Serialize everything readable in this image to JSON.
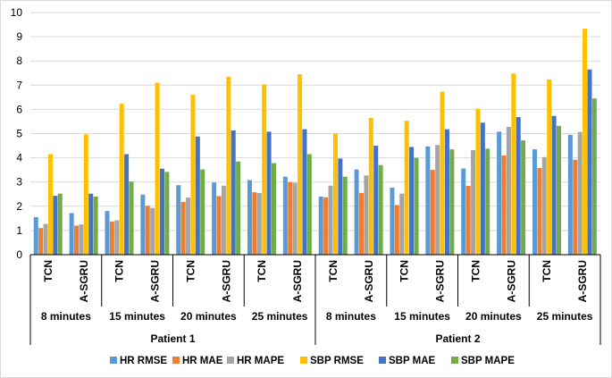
{
  "chart_data": {
    "type": "bar",
    "title": "",
    "xlabel": "",
    "ylabel": "",
    "ylim": [
      0,
      10
    ],
    "yticks": [
      "0",
      "1",
      "2",
      "3",
      "4",
      "5",
      "6",
      "7",
      "8",
      "9",
      "10"
    ],
    "grid": true,
    "legend_position": "bottom",
    "category_levels": {
      "models": [
        "TCN",
        "A-SGRU"
      ],
      "horizons": [
        "8 minutes",
        "15 minutes",
        "20 minutes",
        "25 minutes"
      ],
      "patients": [
        "Patient 1",
        "Patient 2"
      ]
    },
    "categories": [
      "Patient 1 | 8 minutes | TCN",
      "Patient 1 | 8 minutes | A-SGRU",
      "Patient 1 | 15 minutes | TCN",
      "Patient 1 | 15 minutes | A-SGRU",
      "Patient 1 | 20 minutes | TCN",
      "Patient 1 | 20 minutes | A-SGRU",
      "Patient 1 | 25 minutes | TCN",
      "Patient 1 | 25 minutes | A-SGRU",
      "Patient 2 | 8 minutes | TCN",
      "Patient 2 | 8 minutes | A-SGRU",
      "Patient 2 | 15 minutes | TCN",
      "Patient 2 | 15 minutes | A-SGRU",
      "Patient 2 | 20 minutes | TCN",
      "Patient 2 | 20 minutes | A-SGRU",
      "Patient 2 | 25 minutes | TCN",
      "Patient 2 | 25 minutes | A-SGRU"
    ],
    "series": [
      {
        "name": "HR RMSE",
        "color": "#5b9bd5",
        "values": [
          1.55,
          1.72,
          1.8,
          2.48,
          2.87,
          2.98,
          3.08,
          3.22,
          2.4,
          3.52,
          2.77,
          4.47,
          3.56,
          5.08,
          4.35,
          4.95
        ]
      },
      {
        "name": "HR MAE",
        "color": "#ed7d31",
        "values": [
          1.1,
          1.2,
          1.37,
          2.02,
          2.18,
          2.42,
          2.58,
          3.0,
          2.37,
          2.55,
          2.05,
          3.5,
          2.84,
          4.1,
          3.58,
          3.92
        ]
      },
      {
        "name": "HR MAPE",
        "color": "#a5a5a5",
        "values": [
          1.27,
          1.25,
          1.42,
          1.93,
          2.36,
          2.85,
          2.55,
          2.97,
          2.85,
          3.27,
          2.52,
          4.53,
          4.32,
          5.28,
          4.03,
          5.07
        ]
      },
      {
        "name": "SBP RMSE",
        "color": "#ffc000",
        "values": [
          4.15,
          4.97,
          6.23,
          7.1,
          6.6,
          7.35,
          7.03,
          7.45,
          5.0,
          5.65,
          5.53,
          6.73,
          6.03,
          7.48,
          7.23,
          9.33
        ]
      },
      {
        "name": "SBP MAE",
        "color": "#4472c4",
        "values": [
          2.43,
          2.52,
          4.15,
          3.55,
          4.88,
          5.13,
          5.08,
          5.18,
          3.97,
          4.5,
          4.45,
          5.18,
          5.45,
          5.68,
          5.73,
          7.65
        ]
      },
      {
        "name": "SBP MAPE",
        "color": "#70ad47",
        "values": [
          2.52,
          2.4,
          3.02,
          3.42,
          3.52,
          3.85,
          3.78,
          4.15,
          3.22,
          3.7,
          4.0,
          4.35,
          4.38,
          4.72,
          5.32,
          6.45
        ]
      }
    ]
  }
}
